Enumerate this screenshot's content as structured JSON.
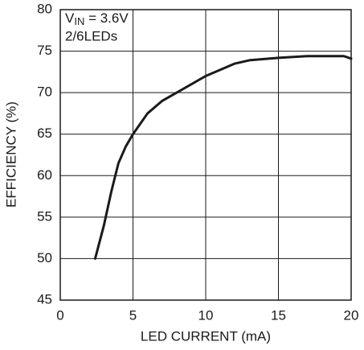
{
  "chart_data": {
    "type": "line",
    "x_label": "LED CURRENT (mA)",
    "y_label": "EFFICIENCY (%)",
    "annotation": {
      "main": "V",
      "sub": "IN",
      "rest": " = 3.6V",
      "line2": "2/6LEDs"
    },
    "x": [
      2.4,
      3,
      3.5,
      4,
      4.5,
      5,
      6,
      7,
      8,
      10,
      12,
      13,
      15,
      17,
      19.5,
      20
    ],
    "series": [
      {
        "color": "#1a1a1a",
        "values": [
          50,
          54,
          58,
          61.5,
          63.5,
          65,
          67.5,
          69,
          70,
          72,
          73.5,
          73.9,
          74.2,
          74.4,
          74.4,
          74.1
        ]
      }
    ],
    "xlim": [
      0,
      20
    ],
    "xticks": [
      0,
      5,
      10,
      15,
      20
    ],
    "ylim": [
      45,
      80
    ],
    "yticks": [
      45,
      50,
      55,
      60,
      65,
      70,
      75,
      80
    ],
    "grid": true
  }
}
